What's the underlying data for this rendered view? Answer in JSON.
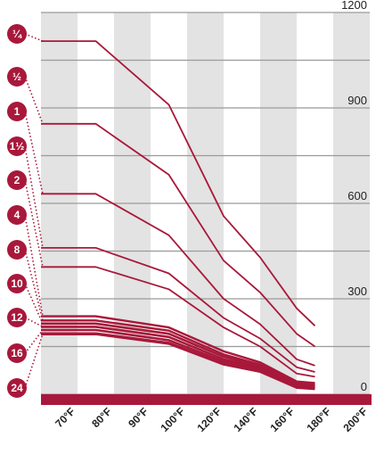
{
  "chart_data": {
    "type": "line",
    "title": "",
    "xlabel": "",
    "ylabel": "",
    "x_tick_labels": [
      "70°F",
      "80°F",
      "90°F",
      "100°F",
      "120°F",
      "140°F",
      "160°F",
      "180°F",
      "200°F"
    ],
    "y_tick_labels": [
      "0",
      "300",
      "600",
      "900",
      "1200"
    ],
    "ylim": [
      0,
      1200
    ],
    "grid": true,
    "legend": "left",
    "colors": {
      "line": "#a8183a",
      "band": "#e3e3e3",
      "grid": "#9a9a9a"
    },
    "x": [
      0,
      1.5,
      3.5,
      5,
      6,
      7,
      7.5,
      8.5
    ],
    "series": [
      {
        "name": "¼",
        "values": [
          1110,
          1110,
          910,
          560,
          430,
          270,
          215,
          0
        ]
      },
      {
        "name": "½",
        "values": [
          850,
          850,
          690,
          420,
          320,
          190,
          150,
          0
        ]
      },
      {
        "name": "1",
        "values": [
          630,
          630,
          500,
          300,
          220,
          110,
          90,
          0
        ]
      },
      {
        "name": "1½",
        "values": [
          460,
          460,
          380,
          240,
          175,
          85,
          70,
          0
        ]
      },
      {
        "name": "2",
        "values": [
          400,
          400,
          330,
          210,
          150,
          65,
          55,
          0
        ]
      },
      {
        "name": "4",
        "values": [
          245,
          245,
          210,
          135,
          100,
          40,
          35,
          0
        ]
      },
      {
        "name": "8",
        "values": [
          232,
          232,
          200,
          125,
          93,
          35,
          30,
          0
        ]
      },
      {
        "name": "10",
        "values": [
          222,
          222,
          190,
          118,
          88,
          32,
          28,
          0
        ]
      },
      {
        "name": "12",
        "values": [
          212,
          212,
          180,
          110,
          83,
          29,
          25,
          0
        ]
      },
      {
        "name": "16",
        "values": [
          202,
          202,
          170,
          103,
          78,
          26,
          22,
          0
        ]
      },
      {
        "name": "24",
        "values": [
          190,
          190,
          160,
          95,
          72,
          22,
          18,
          0
        ]
      }
    ]
  }
}
